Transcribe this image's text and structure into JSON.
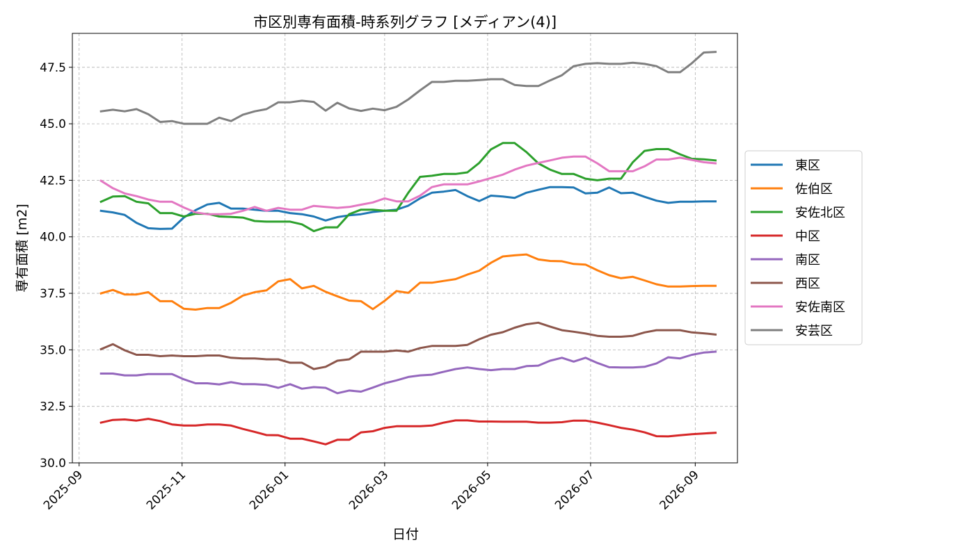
{
  "chart_data": {
    "type": "line",
    "title": "市区別専有面積-時系列グラフ [メディアン(4)]",
    "xlabel": "日付",
    "ylabel": "専有面積 [m2]",
    "ylim": [
      30.0,
      49.0
    ],
    "yticks": [
      30.0,
      32.5,
      35.0,
      37.5,
      40.0,
      42.5,
      45.0,
      47.5
    ],
    "ytick_labels": [
      "30.0",
      "32.5",
      "35.0",
      "37.5",
      "40.0",
      "42.5",
      "45.0",
      "47.5"
    ],
    "xlim": [
      "2025-08-28",
      "2026-09-26"
    ],
    "xticks": [
      "2025-09-01",
      "2025-11-01",
      "2026-01-01",
      "2026-03-01",
      "2026-05-01",
      "2026-07-01",
      "2026-09-01"
    ],
    "xtick_labels": [
      "2025-09",
      "2025-11",
      "2026-01",
      "2026-03",
      "2026-05",
      "2026-07",
      "2026-09"
    ],
    "grid": true,
    "legend_position": "right-outside",
    "x": [
      "2025-09-14",
      "2025-09-21",
      "2025-09-28",
      "2025-10-05",
      "2025-10-12",
      "2025-10-19",
      "2025-10-26",
      "2025-11-02",
      "2025-11-09",
      "2025-11-16",
      "2025-11-23",
      "2025-11-30",
      "2025-12-07",
      "2025-12-14",
      "2025-12-21",
      "2025-12-28",
      "2026-01-04",
      "2026-01-11",
      "2026-01-18",
      "2026-01-25",
      "2026-02-01",
      "2026-02-08",
      "2026-02-15",
      "2026-02-22",
      "2026-03-01",
      "2026-03-08",
      "2026-03-15",
      "2026-03-22",
      "2026-03-29",
      "2026-04-05",
      "2026-04-12",
      "2026-04-19",
      "2026-04-26",
      "2026-05-03",
      "2026-05-10",
      "2026-05-17",
      "2026-05-24",
      "2026-05-31",
      "2026-06-07",
      "2026-06-14",
      "2026-06-21",
      "2026-06-28",
      "2026-07-05",
      "2026-07-12",
      "2026-07-19",
      "2026-07-26",
      "2026-08-02",
      "2026-08-09",
      "2026-08-16",
      "2026-08-23",
      "2026-08-30",
      "2026-09-06",
      "2026-09-13"
    ],
    "series": [
      {
        "name": "東区",
        "color": "#1f77b4",
        "values": [
          41.15,
          41.08,
          40.97,
          40.62,
          40.38,
          40.35,
          40.36,
          40.85,
          41.18,
          41.43,
          41.5,
          41.25,
          41.25,
          41.2,
          41.15,
          41.15,
          41.05,
          41.0,
          40.9,
          40.72,
          40.87,
          40.95,
          41.0,
          41.1,
          41.15,
          41.2,
          41.38,
          41.7,
          41.95,
          42.0,
          42.07,
          41.8,
          41.58,
          41.82,
          41.78,
          41.72,
          41.95,
          42.08,
          42.2,
          42.2,
          42.18,
          41.92,
          41.95,
          42.18,
          41.93,
          41.95,
          41.77,
          41.6,
          41.5,
          41.55,
          41.55,
          41.57,
          41.57
        ]
      },
      {
        "name": "佐伯区",
        "color": "#ff7f0e",
        "values": [
          37.5,
          37.65,
          37.45,
          37.45,
          37.55,
          37.15,
          37.15,
          36.82,
          36.78,
          36.85,
          36.85,
          37.08,
          37.4,
          37.55,
          37.63,
          38.03,
          38.13,
          37.72,
          37.83,
          37.57,
          37.37,
          37.18,
          37.15,
          36.8,
          37.17,
          37.6,
          37.52,
          37.97,
          37.97,
          38.05,
          38.13,
          38.33,
          38.5,
          38.85,
          39.13,
          39.18,
          39.22,
          39.0,
          38.93,
          38.92,
          38.8,
          38.77,
          38.52,
          38.3,
          38.17,
          38.23,
          38.07,
          37.9,
          37.8,
          37.8,
          37.82,
          37.83,
          37.83
        ]
      },
      {
        "name": "安佐北区",
        "color": "#2ca02c",
        "values": [
          41.55,
          41.78,
          41.8,
          41.55,
          41.48,
          41.05,
          41.05,
          40.9,
          41.02,
          41.02,
          40.9,
          40.88,
          40.85,
          40.7,
          40.67,
          40.67,
          40.67,
          40.55,
          40.25,
          40.42,
          40.42,
          41.0,
          41.2,
          41.2,
          41.15,
          41.15,
          41.95,
          42.65,
          42.7,
          42.78,
          42.78,
          42.85,
          43.27,
          43.87,
          44.15,
          44.15,
          43.75,
          43.25,
          42.97,
          42.78,
          42.78,
          42.57,
          42.5,
          42.57,
          42.57,
          43.3,
          43.8,
          43.88,
          43.88,
          43.65,
          43.45,
          43.43,
          43.38
        ]
      },
      {
        "name": "中区",
        "color": "#d62728",
        "values": [
          31.78,
          31.9,
          31.92,
          31.87,
          31.95,
          31.85,
          31.7,
          31.65,
          31.65,
          31.7,
          31.7,
          31.65,
          31.5,
          31.37,
          31.23,
          31.22,
          31.07,
          31.07,
          30.95,
          30.82,
          31.02,
          31.02,
          31.35,
          31.4,
          31.55,
          31.62,
          31.62,
          31.62,
          31.65,
          31.78,
          31.88,
          31.88,
          31.83,
          31.83,
          31.82,
          31.82,
          31.82,
          31.78,
          31.78,
          31.8,
          31.87,
          31.87,
          31.78,
          31.67,
          31.55,
          31.47,
          31.35,
          31.18,
          31.17,
          31.22,
          31.27,
          31.3,
          31.33
        ]
      },
      {
        "name": "南区",
        "color": "#9467bd",
        "values": [
          33.95,
          33.95,
          33.87,
          33.87,
          33.93,
          33.93,
          33.93,
          33.7,
          33.52,
          33.52,
          33.47,
          33.57,
          33.48,
          33.48,
          33.45,
          33.32,
          33.48,
          33.28,
          33.35,
          33.32,
          33.08,
          33.2,
          33.15,
          33.33,
          33.52,
          33.65,
          33.8,
          33.87,
          33.9,
          34.03,
          34.15,
          34.22,
          34.15,
          34.1,
          34.15,
          34.15,
          34.28,
          34.3,
          34.52,
          34.65,
          34.48,
          34.65,
          34.42,
          34.23,
          34.22,
          34.22,
          34.25,
          34.4,
          34.67,
          34.62,
          34.78,
          34.88,
          34.92
        ]
      },
      {
        "name": "西区",
        "color": "#8c564b",
        "values": [
          35.03,
          35.25,
          34.98,
          34.78,
          34.78,
          34.72,
          34.75,
          34.72,
          34.72,
          34.75,
          34.75,
          34.65,
          34.62,
          34.62,
          34.58,
          34.58,
          34.43,
          34.43,
          34.15,
          34.25,
          34.52,
          34.58,
          34.92,
          34.92,
          34.92,
          34.97,
          34.92,
          35.08,
          35.17,
          35.17,
          35.17,
          35.22,
          35.47,
          35.67,
          35.78,
          35.98,
          36.13,
          36.2,
          36.03,
          35.87,
          35.8,
          35.72,
          35.62,
          35.58,
          35.58,
          35.62,
          35.77,
          35.87,
          35.87,
          35.87,
          35.77,
          35.73,
          35.68
        ]
      },
      {
        "name": "安佐南区",
        "color": "#e377c2",
        "values": [
          42.48,
          42.15,
          41.92,
          41.8,
          41.65,
          41.55,
          41.55,
          41.3,
          41.08,
          41.0,
          41.0,
          41.02,
          41.15,
          41.32,
          41.15,
          41.28,
          41.2,
          41.2,
          41.37,
          41.32,
          41.28,
          41.32,
          41.42,
          41.52,
          41.7,
          41.57,
          41.57,
          41.82,
          42.2,
          42.32,
          42.32,
          42.32,
          42.45,
          42.6,
          42.75,
          42.97,
          43.15,
          43.27,
          43.38,
          43.5,
          43.55,
          43.55,
          43.25,
          42.9,
          42.9,
          42.9,
          43.12,
          43.42,
          43.42,
          43.5,
          43.4,
          43.3,
          43.25
        ]
      },
      {
        "name": "安芸区",
        "color": "#7f7f7f",
        "values": [
          45.55,
          45.62,
          45.55,
          45.65,
          45.42,
          45.08,
          45.12,
          45.0,
          45.0,
          45.0,
          45.27,
          45.12,
          45.4,
          45.55,
          45.65,
          45.95,
          45.95,
          46.02,
          45.97,
          45.58,
          45.93,
          45.68,
          45.57,
          45.67,
          45.6,
          45.75,
          46.08,
          46.48,
          46.85,
          46.85,
          46.9,
          46.9,
          46.93,
          46.97,
          46.97,
          46.72,
          46.67,
          46.67,
          46.92,
          47.15,
          47.55,
          47.65,
          47.68,
          47.65,
          47.65,
          47.7,
          47.65,
          47.55,
          47.28,
          47.28,
          47.68,
          48.15,
          48.18
        ]
      }
    ]
  }
}
